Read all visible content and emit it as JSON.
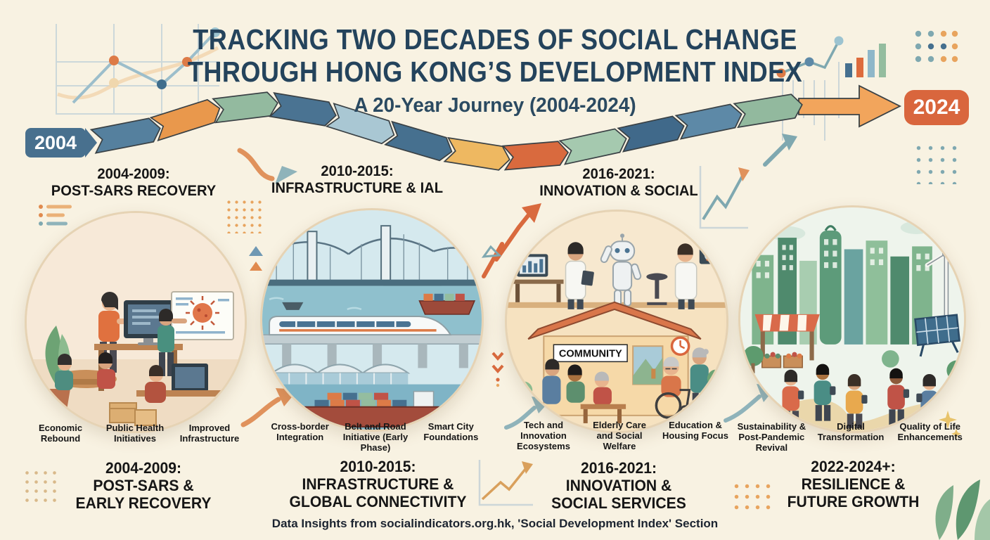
{
  "palette": {
    "background": "#f8f2e2",
    "title_navy": "#24435c",
    "heading_black": "#161616",
    "badge_2004_blue": "#48708e",
    "badge_2024_orange": "#d9663d",
    "final_arrow_orange": "#f2a55c",
    "accent_teal": "#7fa8b0",
    "accent_orange": "#e8a45e",
    "accent_green": "#93ba9f"
  },
  "header": {
    "title_line1": "TRACKING TWO DECADES OF SOCIAL CHANGE",
    "title_line2": "THROUGH HONG KONG’S DEVELOPMENT INDEX",
    "subtitle": "A 20-Year Journey (2004-2024)"
  },
  "timeline": {
    "start_label": "2004",
    "end_label": "2024",
    "segment_colors": [
      "#55809e",
      "#e9984c",
      "#93ba9f",
      "#4a7392",
      "#a9c7d3",
      "#46708f",
      "#eeb861",
      "#d96a3e",
      "#a5c9af",
      "#40698a",
      "#5d89a7",
      "#92b99e"
    ]
  },
  "sections": [
    {
      "top_heading": "2004-2009:\nPOST-SARS RECOVERY",
      "labels": [
        "Economic Rebound",
        "Public Health Initiatives",
        "Improved Infrastructure"
      ],
      "bottom_heading": "2004-2009:\nPOST-SARS &\nEARLY RECOVERY"
    },
    {
      "top_heading": "2010-2015:\nINFRASTRUCTURE & IAL",
      "labels": [
        "Cross-border Integration",
        "Belt and Road Initiative (Early Phase)",
        "Smart City Foundations"
      ],
      "bottom_heading": "2010-2015:\nINFRASTRUCTURE &\nGLOBAL CONNECTIVITY"
    },
    {
      "top_heading": "2016-2021:\nINNOVATION & SOCIAL",
      "scene_label": "COMMUNITY",
      "labels": [
        "Tech and Innovation Ecosystems",
        "Elderly Care and Social Welfare",
        "Education & Housing Focus"
      ],
      "bottom_heading": "2016-2021:\nINNOVATION &\nSOCIAL SERVICES"
    },
    {
      "labels": [
        "Sustainability & Post-Pandemic Revival",
        "Digital Transformation",
        "Quality of Life Enhancements"
      ],
      "bottom_heading": "2022-2024+:\nRESILIENCE &\nFUTURE GROWTH"
    }
  ],
  "footer": {
    "text": "Data Insights from socialindicators.org.hk, 'Social Development Index' Section"
  }
}
